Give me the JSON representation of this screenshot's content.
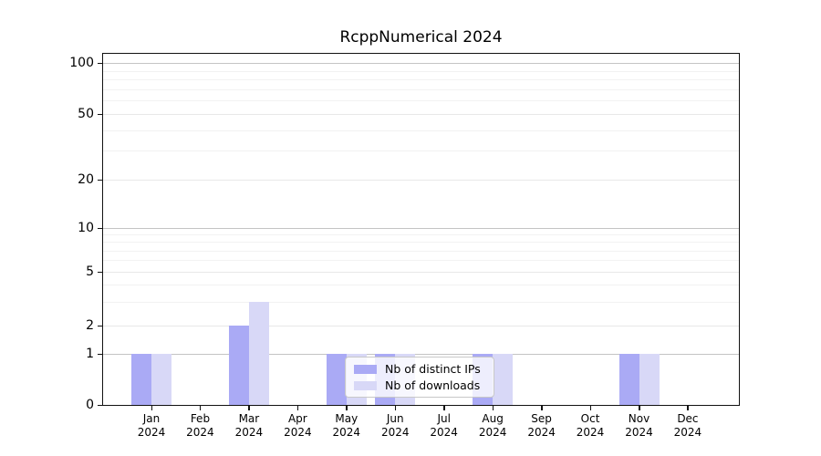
{
  "title": "RcppNumerical 2024",
  "chart_data": {
    "type": "bar",
    "title": "RcppNumerical 2024",
    "categories": [
      {
        "month": "Jan",
        "year": "2024"
      },
      {
        "month": "Feb",
        "year": "2024"
      },
      {
        "month": "Mar",
        "year": "2024"
      },
      {
        "month": "Apr",
        "year": "2024"
      },
      {
        "month": "May",
        "year": "2024"
      },
      {
        "month": "Jun",
        "year": "2024"
      },
      {
        "month": "Jul",
        "year": "2024"
      },
      {
        "month": "Aug",
        "year": "2024"
      },
      {
        "month": "Sep",
        "year": "2024"
      },
      {
        "month": "Oct",
        "year": "2024"
      },
      {
        "month": "Nov",
        "year": "2024"
      },
      {
        "month": "Dec",
        "year": "2024"
      }
    ],
    "series": [
      {
        "name": "Nb of distinct IPs",
        "color": "#aaaaf5",
        "values": [
          1,
          0,
          2,
          0,
          1,
          1,
          0,
          1,
          0,
          0,
          1,
          0
        ]
      },
      {
        "name": "Nb of downloads",
        "color": "#d8d8f7",
        "values": [
          1,
          0,
          3,
          0,
          1,
          1,
          0,
          1,
          0,
          0,
          1,
          0
        ]
      }
    ],
    "y_axis": {
      "scale": "log-like",
      "ticks": [
        0,
        1,
        2,
        5,
        10,
        20,
        50,
        100
      ],
      "minor_ticks": [
        3,
        4,
        6,
        7,
        8,
        9,
        30,
        40,
        60,
        70,
        80,
        90
      ],
      "emphasized_grid_values": [
        1,
        10,
        100
      ],
      "range": [
        0,
        105
      ]
    },
    "grid": true,
    "legend_position": "lower-center"
  },
  "colors": {
    "ips_bar": "#aaaaf5",
    "downloads_bar": "#d8d8f7",
    "grid_minor": "#f2f2f2",
    "grid_major_light": "#e8e8e8",
    "grid_major_dark": "#c4c4c4",
    "axis": "#111111",
    "legend_border": "#c8c8c8"
  }
}
